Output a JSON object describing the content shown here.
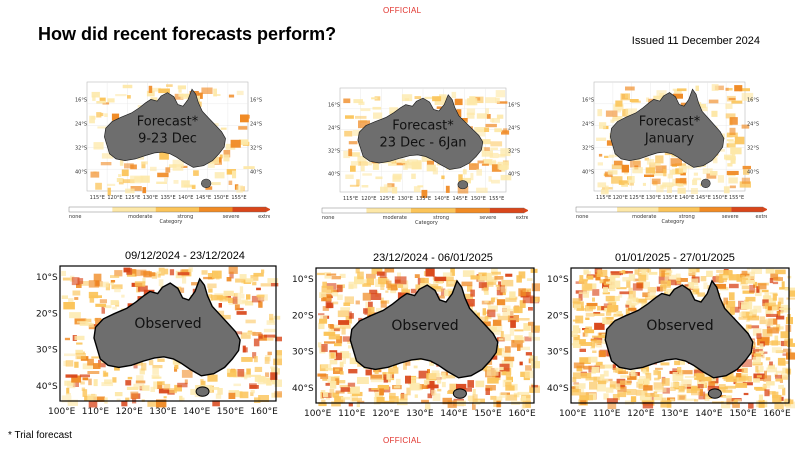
{
  "header": {
    "official_top": "OFFICIAL",
    "title": "How did recent forecasts perform?",
    "issued": "Issued 11 December 2024"
  },
  "footer": {
    "official_bottom": "OFFICIAL",
    "footnote": "* Trial forecast"
  },
  "forecast_maps": [
    {
      "label_line1": "Forecast*",
      "label_line2": "9-23 Dec"
    },
    {
      "label_line1": "Forecast*",
      "label_line2": "23 Dec - 6Jan"
    },
    {
      "label_line1": "Forecast*",
      "label_line2": "January"
    }
  ],
  "observed_maps": [
    {
      "date_range": "09/12/2024 - 23/12/2024",
      "label": "Observed"
    },
    {
      "date_range": "23/12/2024 - 06/01/2025",
      "label": "Observed"
    },
    {
      "date_range": "01/01/2025 - 27/01/2025",
      "label": "Observed"
    }
  ],
  "forecast_axes": {
    "lon_ticks": [
      "115°E",
      "120°E",
      "125°E",
      "130°E",
      "135°E",
      "140°E",
      "145°E",
      "150°E",
      "155°E"
    ],
    "lat_ticks": [
      "16°S",
      "24°S",
      "32°S",
      "40°S"
    ]
  },
  "observed_axes": {
    "lon_ticks": [
      "100°E",
      "110°E",
      "120°E",
      "130°E",
      "140°E",
      "150°E",
      "160°E"
    ],
    "lat_ticks": [
      "10°S",
      "20°S",
      "30°S",
      "40°S"
    ]
  },
  "colorbar": {
    "labels": [
      "none",
      "moderate",
      "strong",
      "severe",
      "extreme"
    ],
    "title": "Category",
    "colors": [
      "#ffffff",
      "#fde8a8",
      "#fbc459",
      "#f08a24",
      "#d9461a"
    ]
  },
  "colors": {
    "land": "#6e6e6e",
    "official_red": "#e0312b"
  }
}
